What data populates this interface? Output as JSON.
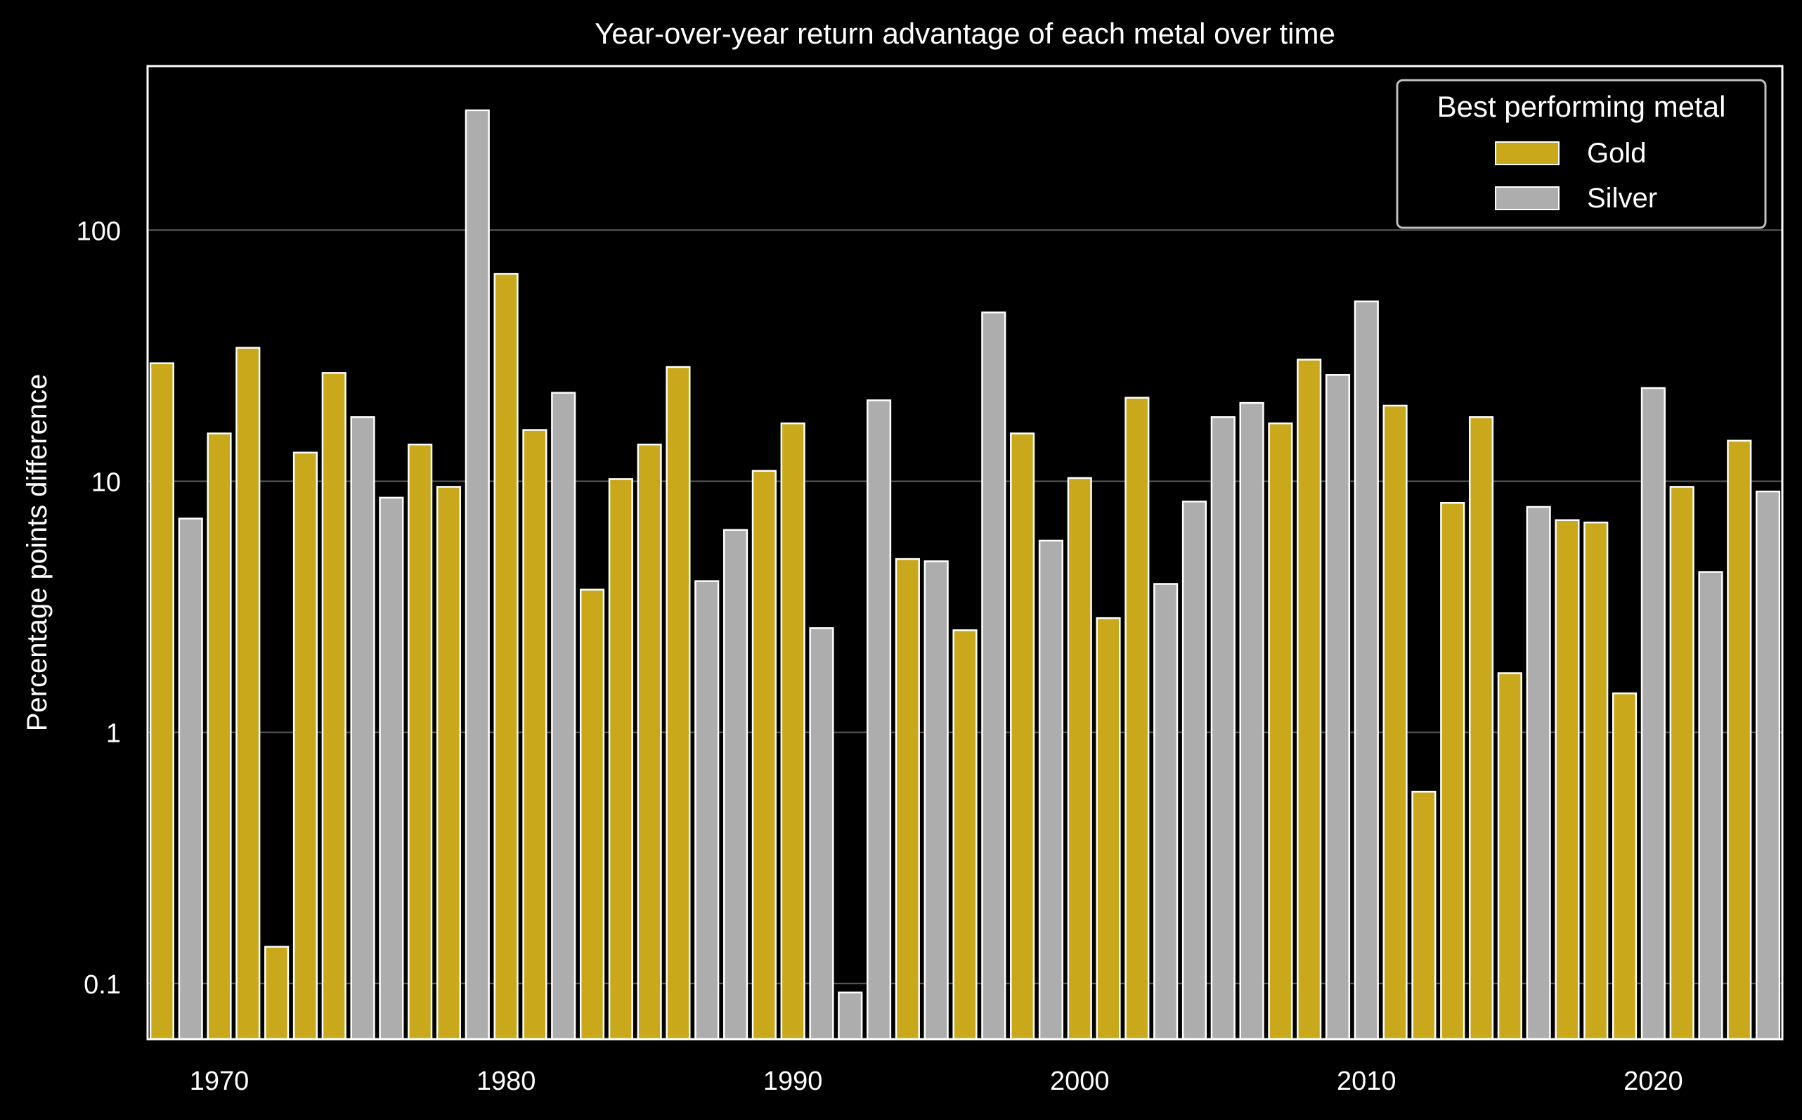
{
  "chart_data": {
    "type": "bar",
    "title": "Year-over-year return advantage of each metal over time",
    "xlabel": "",
    "ylabel": "Percentage points difference",
    "yscale": "log",
    "ylim": [
      0.06,
      450
    ],
    "xlim": [
      1967.5,
      2024.5
    ],
    "xticks": [
      1970,
      1980,
      1990,
      2000,
      2010,
      2020
    ],
    "yticks": [
      {
        "value": 0.1,
        "label": "0.1"
      },
      {
        "value": 1,
        "label": "1"
      },
      {
        "value": 10,
        "label": "10"
      },
      {
        "value": 100,
        "label": "100"
      }
    ],
    "grid": "horizontal",
    "legend": {
      "title": "Best performing metal",
      "position": "top-right"
    },
    "colors": {
      "Gold": "#c9a81b",
      "Silver": "#adadad",
      "background": "#000000",
      "text": "#ffffff",
      "grid": "#5a5a5a"
    },
    "series": [
      {
        "name": "Gold",
        "values": [
          {
            "year": 1968,
            "value": 29.5
          },
          {
            "year": 1970,
            "value": 15.5
          },
          {
            "year": 1971,
            "value": 34
          },
          {
            "year": 1972,
            "value": 0.14
          },
          {
            "year": 1973,
            "value": 13
          },
          {
            "year": 1974,
            "value": 27
          },
          {
            "year": 1977,
            "value": 14
          },
          {
            "year": 1978,
            "value": 9.5
          },
          {
            "year": 1980,
            "value": 67
          },
          {
            "year": 1981,
            "value": 16
          },
          {
            "year": 1983,
            "value": 3.7
          },
          {
            "year": 1984,
            "value": 10.2
          },
          {
            "year": 1985,
            "value": 14
          },
          {
            "year": 1986,
            "value": 28.5
          },
          {
            "year": 1989,
            "value": 11
          },
          {
            "year": 1990,
            "value": 17
          },
          {
            "year": 1994,
            "value": 4.9
          },
          {
            "year": 1996,
            "value": 2.55
          },
          {
            "year": 1998,
            "value": 15.5
          },
          {
            "year": 2000,
            "value": 10.3
          },
          {
            "year": 2001,
            "value": 2.85
          },
          {
            "year": 2002,
            "value": 21.5
          },
          {
            "year": 2007,
            "value": 17
          },
          {
            "year": 2008,
            "value": 30.5
          },
          {
            "year": 2011,
            "value": 20
          },
          {
            "year": 2012,
            "value": 0.58
          },
          {
            "year": 2013,
            "value": 8.2
          },
          {
            "year": 2014,
            "value": 18
          },
          {
            "year": 2015,
            "value": 1.72
          },
          {
            "year": 2017,
            "value": 7
          },
          {
            "year": 2018,
            "value": 6.85
          },
          {
            "year": 2019,
            "value": 1.43
          },
          {
            "year": 2021,
            "value": 9.5
          },
          {
            "year": 2023,
            "value": 14.5
          }
        ]
      },
      {
        "name": "Silver",
        "values": [
          {
            "year": 1969,
            "value": 7.1
          },
          {
            "year": 1975,
            "value": 18
          },
          {
            "year": 1976,
            "value": 8.6
          },
          {
            "year": 1979,
            "value": 300
          },
          {
            "year": 1982,
            "value": 22.5
          },
          {
            "year": 1987,
            "value": 4
          },
          {
            "year": 1988,
            "value": 6.4
          },
          {
            "year": 1991,
            "value": 2.6
          },
          {
            "year": 1992,
            "value": 0.092
          },
          {
            "year": 1993,
            "value": 21
          },
          {
            "year": 1995,
            "value": 4.8
          },
          {
            "year": 1997,
            "value": 47
          },
          {
            "year": 1999,
            "value": 5.8
          },
          {
            "year": 2003,
            "value": 3.9
          },
          {
            "year": 2004,
            "value": 8.3
          },
          {
            "year": 2005,
            "value": 18
          },
          {
            "year": 2006,
            "value": 20.5
          },
          {
            "year": 2009,
            "value": 26.5
          },
          {
            "year": 2010,
            "value": 52
          },
          {
            "year": 2016,
            "value": 7.9
          },
          {
            "year": 2020,
            "value": 23.5
          },
          {
            "year": 2022,
            "value": 4.35
          },
          {
            "year": 2024,
            "value": 9.1
          }
        ]
      }
    ]
  }
}
